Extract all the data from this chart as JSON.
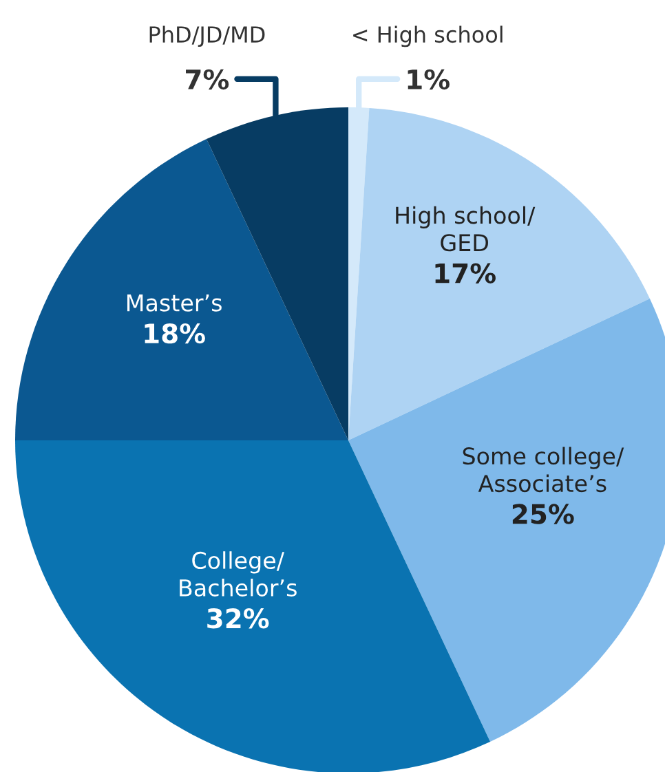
{
  "chart_data": {
    "type": "pie",
    "categories": [
      "< High school",
      "High school/\nGED",
      "Some college/\nAssociate’s",
      "College/\nBachelor’s",
      "Master’s",
      "PhD/JD/MD"
    ],
    "values": [
      1,
      17,
      25,
      32,
      18,
      7
    ],
    "colors": [
      "#d4e9fa",
      "#aed3f3",
      "#7fb9ea",
      "#0a73b1",
      "#0b5891",
      "#073c63"
    ],
    "value_labels": [
      "1%",
      "17%",
      "25%",
      "32%",
      "18%",
      "7%"
    ]
  }
}
